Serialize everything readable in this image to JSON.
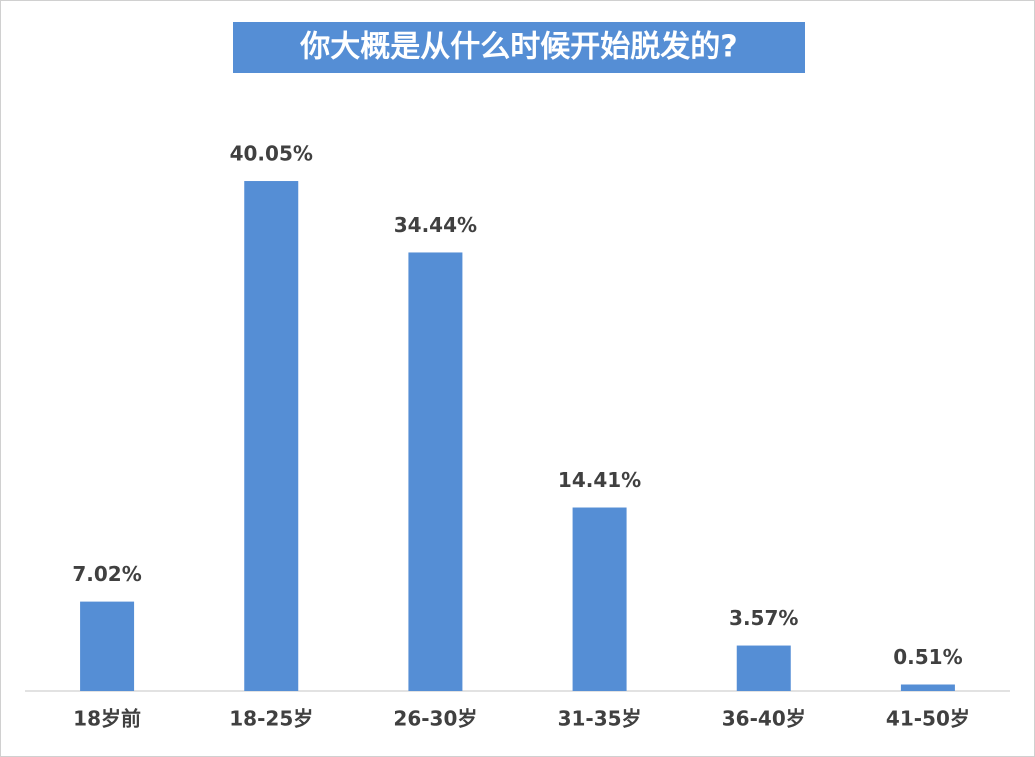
{
  "chart_data": {
    "type": "bar",
    "title": "你大概是从什么时候开始脱发的?",
    "categories": [
      "18岁前",
      "18-25岁",
      "26-30岁",
      "31-35岁",
      "36-40岁",
      "41-50岁"
    ],
    "values": [
      7.02,
      40.05,
      34.44,
      14.41,
      3.57,
      0.51
    ],
    "value_labels": [
      "7.02%",
      "40.05%",
      "34.44%",
      "14.41%",
      "3.57%",
      "0.51%"
    ],
    "color": "#558ed5",
    "ylim": [
      0,
      45
    ]
  }
}
